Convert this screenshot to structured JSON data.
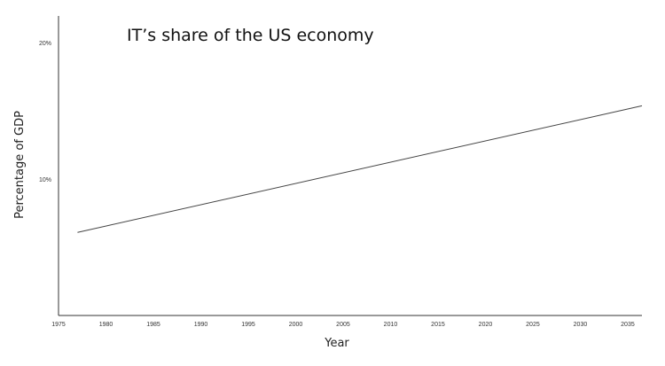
{
  "chart_data": {
    "type": "line",
    "title": "IT’s share of the US economy",
    "xlabel": "Year",
    "ylabel": "Percentage of GDP",
    "xlim": [
      1975,
      2036.5
    ],
    "ylim": [
      0,
      22
    ],
    "x_ticks": [
      1975,
      1980,
      1985,
      1990,
      1995,
      2000,
      2005,
      2010,
      2015,
      2020,
      2025,
      2030,
      2035
    ],
    "x_tick_labels": [
      "1975",
      "1980",
      "1985",
      "1990",
      "1995",
      "2000",
      "2005",
      "2010",
      "2015",
      "2020",
      "2025",
      "2030",
      "2035"
    ],
    "y_ticks": [
      10,
      20
    ],
    "y_tick_labels": [
      "10%",
      "20%"
    ],
    "grid": false,
    "legend": "none",
    "series": [
      {
        "x": [
          1977,
          2036.5
        ],
        "values": [
          6.1,
          15.4
        ],
        "color": "#444444"
      }
    ]
  }
}
